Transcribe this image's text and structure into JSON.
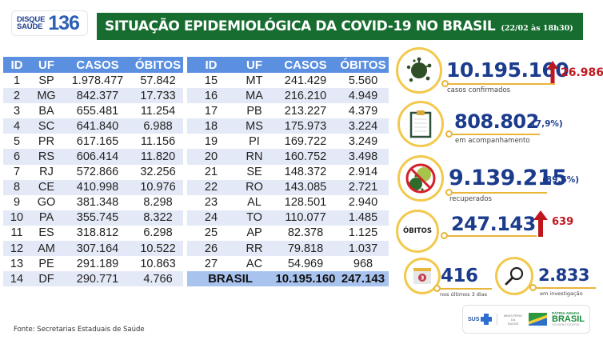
{
  "header": {
    "logo": {
      "line1": "DISQUE",
      "line2": "SAÚDE",
      "number": "136"
    },
    "title": "SITUAÇÃO EPIDEMIOLÓGICA DA COVID-19 NO BRASIL",
    "date": "(22/02 às 18h30)",
    "title_bg_color": "#166d2f"
  },
  "table": {
    "columns": [
      "ID",
      "UF",
      "CASOS",
      "ÓBITOS"
    ],
    "header_color": "#5b8fe0",
    "left_rows": [
      {
        "id": "1",
        "uf": "SP",
        "casos": "1.978.477",
        "obitos": "57.842"
      },
      {
        "id": "2",
        "uf": "MG",
        "casos": "842.377",
        "obitos": "17.733"
      },
      {
        "id": "3",
        "uf": "BA",
        "casos": "655.481",
        "obitos": "11.254"
      },
      {
        "id": "4",
        "uf": "SC",
        "casos": "641.840",
        "obitos": "6.988"
      },
      {
        "id": "5",
        "uf": "PR",
        "casos": "617.165",
        "obitos": "11.156"
      },
      {
        "id": "6",
        "uf": "RS",
        "casos": "606.414",
        "obitos": "11.820"
      },
      {
        "id": "7",
        "uf": "RJ",
        "casos": "572.866",
        "obitos": "32.256"
      },
      {
        "id": "8",
        "uf": "CE",
        "casos": "410.998",
        "obitos": "10.976"
      },
      {
        "id": "9",
        "uf": "GO",
        "casos": "381.348",
        "obitos": "8.298"
      },
      {
        "id": "10",
        "uf": "PA",
        "casos": "355.745",
        "obitos": "8.322"
      },
      {
        "id": "11",
        "uf": "ES",
        "casos": "318.812",
        "obitos": "6.298"
      },
      {
        "id": "12",
        "uf": "AM",
        "casos": "307.164",
        "obitos": "10.522"
      },
      {
        "id": "13",
        "uf": "PE",
        "casos": "291.189",
        "obitos": "10.863"
      },
      {
        "id": "14",
        "uf": "DF",
        "casos": "290.771",
        "obitos": "4.766"
      }
    ],
    "right_rows": [
      {
        "id": "15",
        "uf": "MT",
        "casos": "241.429",
        "obitos": "5.560"
      },
      {
        "id": "16",
        "uf": "MA",
        "casos": "216.210",
        "obitos": "4.949"
      },
      {
        "id": "17",
        "uf": "PB",
        "casos": "213.227",
        "obitos": "4.379"
      },
      {
        "id": "18",
        "uf": "MS",
        "casos": "175.973",
        "obitos": "3.224"
      },
      {
        "id": "19",
        "uf": "PI",
        "casos": "169.722",
        "obitos": "3.249"
      },
      {
        "id": "20",
        "uf": "RN",
        "casos": "160.752",
        "obitos": "3.498"
      },
      {
        "id": "21",
        "uf": "SE",
        "casos": "148.372",
        "obitos": "2.914"
      },
      {
        "id": "22",
        "uf": "RO",
        "casos": "143.085",
        "obitos": "2.721"
      },
      {
        "id": "23",
        "uf": "AL",
        "casos": "128.501",
        "obitos": "2.940"
      },
      {
        "id": "24",
        "uf": "TO",
        "casos": "110.077",
        "obitos": "1.485"
      },
      {
        "id": "25",
        "uf": "AP",
        "casos": "82.378",
        "obitos": "1.125"
      },
      {
        "id": "26",
        "uf": "RR",
        "casos": "79.818",
        "obitos": "1.037"
      },
      {
        "id": "27",
        "uf": "AC",
        "casos": "54.969",
        "obitos": "968"
      }
    ],
    "total": {
      "label": "BRASIL",
      "casos": "10.195.160",
      "obitos": "247.143"
    }
  },
  "stats": {
    "confirmed": {
      "icon": "virus-icon",
      "value": "10.195.160",
      "delta": "26.986",
      "caption": "casos confirmados"
    },
    "monitoring": {
      "icon": "clipboard-icon",
      "value": "808.802",
      "pct": "(7,9%)",
      "caption": "em acompanhamento"
    },
    "recovered": {
      "icon": "no-virus-icon",
      "value": "9.139.215",
      "pct": "(89,6%)",
      "caption": "recuperados"
    },
    "deaths": {
      "label": "ÓBITOS",
      "value": "247.143",
      "delta": "639"
    },
    "last3days": {
      "icon": "calendar-icon",
      "calendar_num": "3",
      "value": "416",
      "caption": "nos últimos 3 dias"
    },
    "investigation": {
      "icon": "magnifier-icon",
      "value": "2.833",
      "caption": "em investigação"
    }
  },
  "colors": {
    "number_blue": "#1b3b8c",
    "delta_red": "#c0171e",
    "ring_yellow": "#f2c94c"
  },
  "footer": {
    "source": "Fonte: Secretarias Estaduais de Saúde",
    "logos": {
      "sus": "SUS",
      "ministry_line1": "MINISTÉRIO DA",
      "ministry_line2": "SAÚDE",
      "patria_line1": "PÁTRIA AMADA",
      "patria_line2": "BRASIL",
      "patria_line3": "GOVERNO FEDERAL"
    }
  }
}
